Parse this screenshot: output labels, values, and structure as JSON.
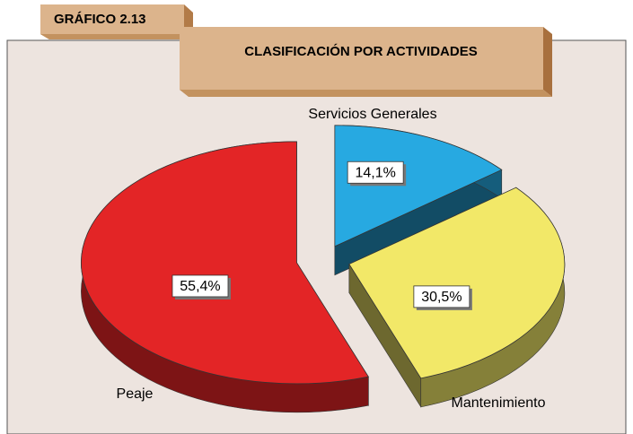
{
  "chart_data": {
    "type": "pie",
    "header_label": "GRÁFICO 2.13",
    "title": "CLASIFICACIÓN POR ACTIVIDADES",
    "categories": [
      "Servicios Generales",
      "Mantenimiento",
      "Peaje"
    ],
    "values": [
      14.1,
      30.5,
      55.4
    ],
    "value_labels": [
      "14,1%",
      "30,5%",
      "55,4%"
    ],
    "colors": [
      "#27a9e1",
      "#f2e868",
      "#e32526"
    ]
  }
}
